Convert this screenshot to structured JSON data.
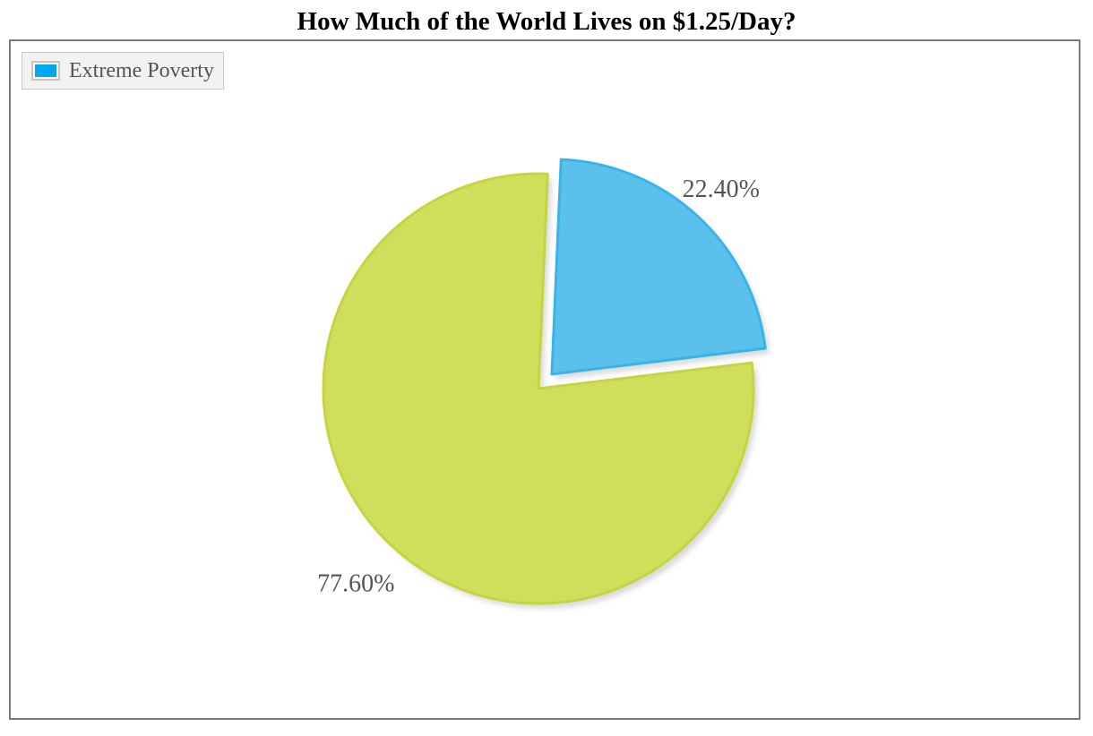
{
  "chart_data": {
    "type": "pie",
    "title": "How Much of the World Lives on $1.25/Day?",
    "legend": {
      "placement": "top-left",
      "entries": [
        {
          "label": "Extreme Poverty",
          "color": "#00a8f0"
        }
      ]
    },
    "slices": [
      {
        "label": "",
        "value": 22.4,
        "display": "22.40%",
        "color": "#5bc0ec",
        "stroke": "#38b4ea",
        "exploded": true
      },
      {
        "label": "",
        "value": 77.6,
        "display": "77.60%",
        "color": "#d0df5b",
        "stroke": "#c4d53e",
        "exploded": false
      }
    ]
  }
}
